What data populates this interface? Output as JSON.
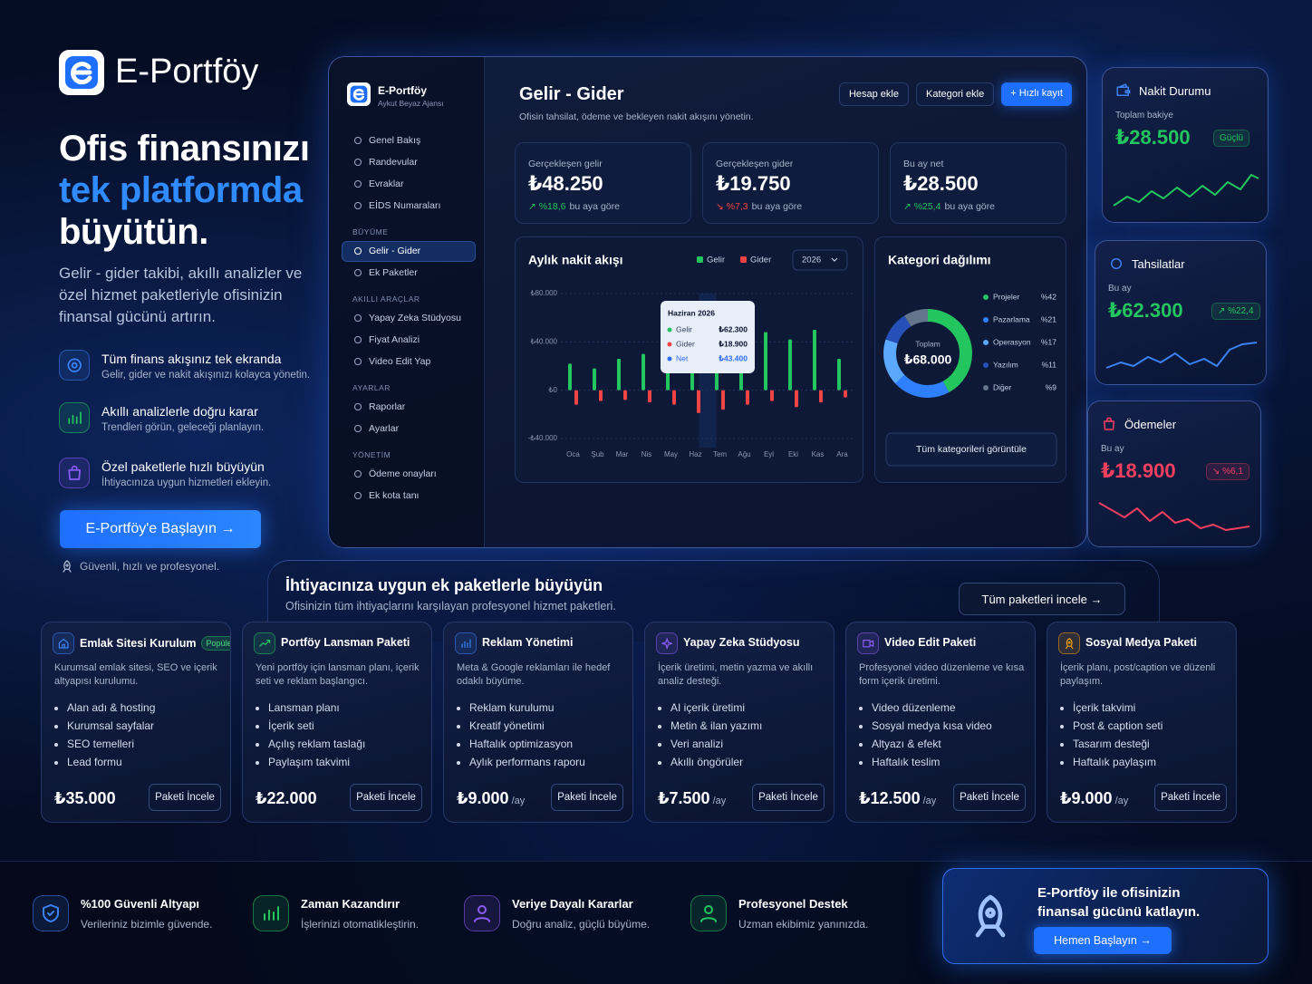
{
  "hero": {
    "brand": "E-Portföy",
    "headline": [
      "Ofis finansınızı",
      "tek platformda",
      "büyütün."
    ],
    "description": "Gelir - gider takibi, akıllı analizler ve özel hizmet paketleriyle ofisinizin finansal gücünü artırın.",
    "features": [
      {
        "title": "Tüm finans akışınız tek ekranda",
        "text": "Gelir, gider ve nakit akışınızı kolayca yönetin."
      },
      {
        "title": "Akıllı analizlerle doğru karar",
        "text": "Trendleri görün, geleceği planlayın."
      },
      {
        "title": "Özel paketlerle hızlı büyüyün",
        "text": "İhtiyacınıza uygun hizmetleri ekleyin."
      }
    ],
    "cta": "E-Portföy'e Başlayın →",
    "note": "Güvenli, hızlı ve profesyonel."
  },
  "dashboard": {
    "sidebar": {
      "brand": "E-Portföy",
      "subtitle": "Aykut Beyaz Ajansı",
      "items": [
        "Genel Bakış",
        "Randevular",
        "Evraklar",
        "EİDS Numaraları"
      ],
      "sections": [
        {
          "title": "BÜYÜME",
          "items": [
            "Gelir - Gider",
            "Ek Paketler"
          ]
        },
        {
          "title": "AKILLI ARAÇLAR",
          "items": [
            "Yapay Zeka Stüdyosu",
            "Fiyat Analizi",
            "Video Edit Yap"
          ]
        },
        {
          "title": "AYARLAR",
          "items": [
            "Raporlar",
            "Ayarlar"
          ]
        },
        {
          "title": "YÖNETİM",
          "items": [
            "Ödeme onayları",
            "Ek kota tanı"
          ]
        }
      ],
      "active": {
        "section": 0,
        "item": 0
      }
    },
    "title": "Gelir - Gider",
    "subtitle": "Ofisin tahsilat, ödeme ve bekleyen nakit akışını yönetin.",
    "actions": [
      "Hesap ekle",
      "Kategori ekle",
      "+ Hızlı kayıt"
    ],
    "stats": [
      {
        "label": "Gerçekleşen gelir",
        "value": "₺48.250",
        "change": "↗ %18,6",
        "note": "bu aya göre",
        "color": "#22c55e"
      },
      {
        "label": "Gerçekleşen gider",
        "value": "₺19.750",
        "change": "↘ %7,3",
        "note": "bu aya göre",
        "color": "#ef4444"
      },
      {
        "label": "Bu ay net",
        "value": "₺28.500",
        "change": "↗ %25,4",
        "note": "bu aya göre",
        "color": "#22c55e"
      }
    ],
    "cashflow_chart": {
      "type": "bar",
      "title": "Aylık nakit akışı",
      "period": "2026",
      "categories": [
        "Oca",
        "Şub",
        "Mar",
        "Nis",
        "May",
        "Haz",
        "Tem",
        "Ağu",
        "Eyl",
        "Eki",
        "Kas",
        "Ara"
      ],
      "series": [
        {
          "name": "Gelir",
          "color": "#22c55e",
          "values": [
            22000,
            18000,
            26000,
            30000,
            20000,
            62300,
            30000,
            28000,
            48000,
            42000,
            50000,
            26000
          ]
        },
        {
          "name": "Gider",
          "color": "#ef4444",
          "values": [
            -12000,
            -9000,
            -8000,
            -10000,
            -12000,
            -18900,
            -16000,
            -12000,
            -9000,
            -14000,
            -10000,
            -6000
          ]
        }
      ],
      "ylim": [
        -40000,
        80000
      ],
      "yticks": [
        {
          "value": 80000,
          "label": "₺80.000"
        },
        {
          "value": 40000,
          "label": "₺40.000"
        },
        {
          "value": 0,
          "label": "₺0"
        },
        {
          "value": -40000,
          "label": "-₺40.000"
        }
      ],
      "grid": true,
      "tooltip": {
        "title": "Haziran 2026",
        "rows": [
          {
            "name": "Gelir",
            "value": "₺62.300",
            "color": "#22c55e"
          },
          {
            "name": "Gider",
            "value": "₺18.900",
            "color": "#ef4444"
          },
          {
            "name": "Net",
            "value": "₺43.400",
            "color": "#2f6fff"
          }
        ]
      }
    },
    "category_chart": {
      "type": "donut",
      "title": "Kategori dağılımı",
      "center_label": "Toplam",
      "center_value": "₺68.000",
      "categories": [
        "Projeler",
        "Pazarlama",
        "Operasyon",
        "Yazılım",
        "Diğer"
      ],
      "values": [
        42,
        21,
        17,
        11,
        9
      ],
      "value_labels": [
        "%42",
        "%21",
        "%17",
        "%11",
        "%9"
      ],
      "colors": [
        "#22c55e",
        "#2f80ff",
        "#5aa8ff",
        "#2550b8",
        "#64748b"
      ],
      "action": "Tüm kategorileri görüntüle"
    }
  },
  "side_cards": [
    {
      "title": "Nakit Durumu",
      "label": "Toplam bakiye",
      "value": "₺28.500",
      "badge": "Güçlü",
      "color": "#22c55e"
    },
    {
      "title": "Tahsilatlar",
      "label": "Bu ay",
      "value": "₺62.300",
      "badge": "↗ %22,4",
      "color": "#22c55e"
    },
    {
      "title": "Ödemeler",
      "label": "Bu ay",
      "value": "₺18.900",
      "badge": "↘ %6,1",
      "color": "#f43f5e"
    }
  ],
  "packages": {
    "title": "İhtiyacınıza uygun ek paketlerle büyüyün",
    "subtitle": "Ofisinizin tüm ihtiyaçlarını karşılayan profesyonel hizmet paketleri.",
    "action": "Tüm paketleri incele →",
    "items": [
      {
        "title": "Emlak Sitesi Kurulum",
        "badge": "Popüler",
        "description": "Kurumsal emlak sitesi, SEO ve içerik altyapısı kurulumu.",
        "features": [
          "Alan adı & hosting",
          "Kurumsal sayfalar",
          "SEO temelleri",
          "Lead formu"
        ],
        "price": "₺35.000",
        "button": "Paketi İncele"
      },
      {
        "title": "Portföy Lansman Paketi",
        "description": "Yeni portföy için lansman planı, içerik seti ve reklam başlangıcı.",
        "features": [
          "Lansman planı",
          "İçerik seti",
          "Açılış reklam taslağı",
          "Paylaşım takvimi"
        ],
        "price": "₺22.000",
        "button": "Paketi İncele"
      },
      {
        "title": "Reklam Yönetimi",
        "description": "Meta & Google reklamları ile hedef odaklı büyüme.",
        "features": [
          "Reklam kurulumu",
          "Kreatif yönetimi",
          "Haftalık optimizasyon",
          "Aylık performans raporu"
        ],
        "price": "₺9.000",
        "period": "/ay",
        "button": "Paketi İncele"
      },
      {
        "title": "Yapay Zeka Stüdyosu",
        "description": "İçerik üretimi, metin yazma ve akıllı analiz desteği.",
        "features": [
          "AI içerik üretimi",
          "Metin & ilan yazımı",
          "Veri analizi",
          "Akıllı öngörüler"
        ],
        "price": "₺7.500",
        "period": "/ay",
        "button": "Paketi İncele"
      },
      {
        "title": "Video Edit Paketi",
        "description": "Profesyonel video düzenleme ve kısa form içerik üretimi.",
        "features": [
          "Video düzenleme",
          "Sosyal medya kısa video",
          "Altyazı & efekt",
          "Haftalık teslim"
        ],
        "price": "₺12.500",
        "period": "/ay",
        "button": "Paketi İncele"
      },
      {
        "title": "Sosyal Medya Paketi",
        "description": "İçerik planı, post/caption ve düzenli paylaşım.",
        "features": [
          "İçerik takvimi",
          "Post & caption seti",
          "Tasarım desteği",
          "Haftalık paylaşım"
        ],
        "price": "₺9.000",
        "period": "/ay",
        "button": "Paketi İncele"
      }
    ]
  },
  "bottom": {
    "features": [
      {
        "title": "%100 Güvenli Altyapı",
        "text": "Verileriniz bizimle güvende."
      },
      {
        "title": "Zaman Kazandırır",
        "text": "İşlerinizi otomatikleştirin."
      },
      {
        "title": "Veriye Dayalı Kararlar",
        "text": "Doğru analiz, güçlü büyüme."
      },
      {
        "title": "Profesyonel Destek",
        "text": "Uzman ekibimiz yanınızda."
      }
    ],
    "cta": {
      "lines": [
        "E-Portföy ile ofisinizin",
        "finansal gücünü katlayın."
      ],
      "button": "Hemen Başlayın →"
    }
  }
}
